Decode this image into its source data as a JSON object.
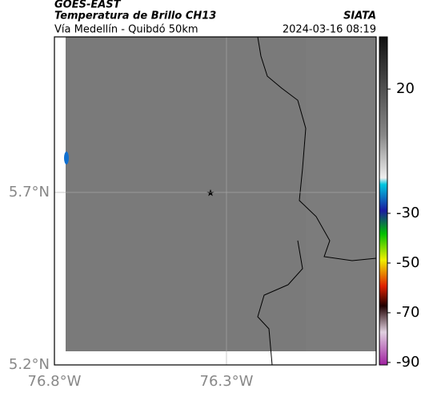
{
  "header": {
    "source": "GOES-EAST",
    "title": "Temperatura de Brillo CH13",
    "org": "SIATA",
    "subtitle": "Vía Medellín - Quibdó 50km",
    "datetime": "2024-03-16 08:19"
  },
  "map": {
    "xlim": [
      -76.8,
      -75.865
    ],
    "ylim": [
      5.2,
      6.151
    ],
    "xticks": [
      {
        "value": -76.8,
        "label": "76.8°W"
      },
      {
        "value": -76.3,
        "label": "76.3°W"
      }
    ],
    "yticks": [
      {
        "value": 5.2,
        "label": "5.2°N"
      },
      {
        "value": 5.7,
        "label": "5.7°N"
      }
    ],
    "grid": true
  },
  "colorbar": {
    "clim": [
      -91,
      41
    ],
    "ticks": [
      20,
      -30,
      -50,
      -70,
      -90
    ]
  }
}
